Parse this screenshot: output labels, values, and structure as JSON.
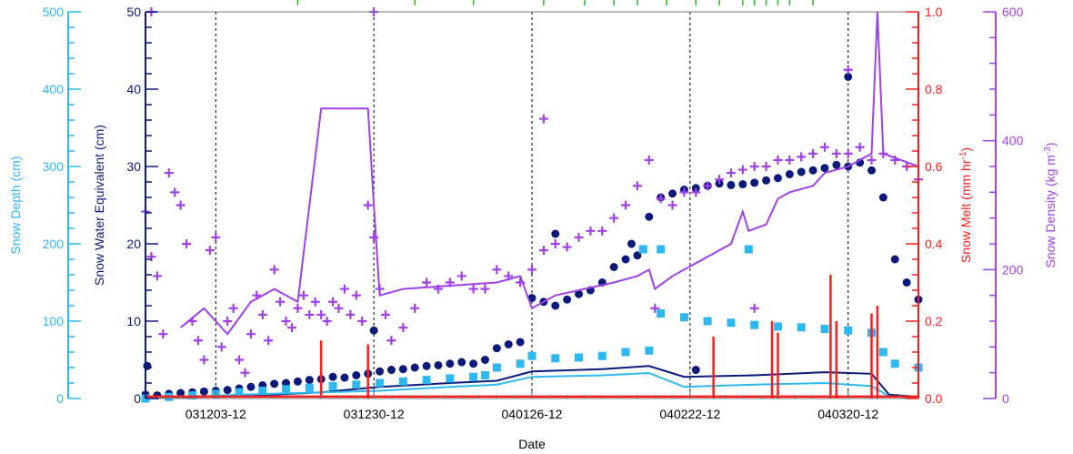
{
  "chart_data": {
    "type": "scatter",
    "xlabel": "Date",
    "x_ticks": [
      "031203-12",
      "031230-12",
      "040126-12",
      "040222-12",
      "040320-12"
    ],
    "x_range_days": [
      0,
      132
    ],
    "x_tick_days": [
      12,
      39,
      66,
      93,
      120
    ],
    "grid_x": true,
    "axes": {
      "depth": {
        "label": "Snow Depth (cm)",
        "range": [
          0,
          500
        ],
        "ticks": [
          "0",
          "100",
          "200",
          "300",
          "400",
          "500"
        ],
        "color": "#2eb8f0"
      },
      "swe": {
        "label": "Snow Water Equivalent (cm)",
        "range": [
          0,
          50
        ],
        "ticks": [
          "0",
          "10",
          "20",
          "30",
          "40",
          "50"
        ],
        "color": "#0a1a7a"
      },
      "melt": {
        "label": "Snow Melt (mm hr",
        "label_sup": "-1",
        "label_end": ")",
        "range": [
          0.0,
          1.0
        ],
        "ticks": [
          "0.0",
          "0.2",
          "0.4",
          "0.6",
          "0.8",
          "1.0"
        ],
        "color": "#ff1a1a"
      },
      "density": {
        "label": "Snow Density (kg m",
        "label_sup": "-3",
        "label_end": ")",
        "range": [
          0,
          600
        ],
        "ticks": [
          "0",
          "200",
          "400",
          "600"
        ],
        "color": "#a040e8"
      }
    },
    "series": [
      {
        "axis": "swe",
        "marker": "dot",
        "color": "#0a1a7a",
        "points": [
          [
            0,
            0.5
          ],
          [
            2,
            0.4
          ],
          [
            4,
            0.6
          ],
          [
            6,
            0.7
          ],
          [
            8,
            0.8
          ],
          [
            10,
            0.9
          ],
          [
            12,
            1.0
          ],
          [
            14,
            1.1
          ],
          [
            16,
            1.3
          ],
          [
            18,
            1.5
          ],
          [
            20,
            1.7
          ],
          [
            22,
            1.9
          ],
          [
            24,
            2.0
          ],
          [
            26,
            2.2
          ],
          [
            28,
            2.4
          ],
          [
            30,
            2.5
          ],
          [
            32,
            2.8
          ],
          [
            34,
            2.7
          ],
          [
            36,
            3.0
          ],
          [
            38,
            3.2
          ],
          [
            40,
            3.5
          ],
          [
            42,
            3.7
          ],
          [
            44,
            3.8
          ],
          [
            46,
            4.0
          ],
          [
            48,
            4.2
          ],
          [
            50,
            4.3
          ],
          [
            52,
            4.5
          ],
          [
            54,
            4.7
          ],
          [
            56,
            4.5
          ],
          [
            58,
            5.0
          ],
          [
            60,
            6.5
          ],
          [
            62,
            7.0
          ],
          [
            64,
            7.3
          ],
          [
            66,
            13.0
          ],
          [
            68,
            12.5
          ],
          [
            70,
            12.0
          ],
          [
            72,
            12.8
          ],
          [
            74,
            13.5
          ],
          [
            76,
            14.0
          ],
          [
            78,
            15.0
          ],
          [
            80,
            17.0
          ],
          [
            82,
            18.0
          ],
          [
            84,
            18.5
          ],
          [
            86,
            23.5
          ],
          [
            88,
            26.0
          ],
          [
            90,
            26.5
          ],
          [
            92,
            27.0
          ],
          [
            94,
            27.2
          ],
          [
            96,
            27.5
          ],
          [
            98,
            27.8
          ],
          [
            100,
            27.6
          ],
          [
            102,
            27.7
          ],
          [
            104,
            27.9
          ],
          [
            106,
            28.2
          ],
          [
            108,
            28.5
          ],
          [
            110,
            29.0
          ],
          [
            112,
            29.3
          ],
          [
            114,
            29.5
          ],
          [
            116,
            29.8
          ],
          [
            118,
            30.2
          ],
          [
            120,
            30.0
          ],
          [
            122,
            30.5
          ],
          [
            124,
            29.5
          ],
          [
            126,
            26.0
          ],
          [
            128,
            18.0
          ],
          [
            130,
            15.0
          ],
          [
            132,
            12.8
          ]
        ]
      },
      {
        "axis": "swe",
        "marker": "dot-outlier",
        "color": "#0a1a7a",
        "points": [
          [
            0.3,
            4.2
          ],
          [
            39,
            8.8
          ],
          [
            70,
            21.3
          ],
          [
            94,
            3.7
          ],
          [
            120,
            41.6
          ],
          [
            83,
            20.0
          ]
        ]
      },
      {
        "axis": "swe",
        "marker": "line",
        "color": "#0a1a7a",
        "points": [
          [
            0,
            0.1
          ],
          [
            16,
            0.3
          ],
          [
            30,
            0.8
          ],
          [
            40,
            1.5
          ],
          [
            52,
            2.0
          ],
          [
            60,
            2.3
          ],
          [
            66,
            3.5
          ],
          [
            78,
            3.8
          ],
          [
            86,
            4.2
          ],
          [
            92,
            2.8
          ],
          [
            104,
            3.0
          ],
          [
            116,
            3.4
          ],
          [
            124,
            3.2
          ],
          [
            127,
            0.5
          ],
          [
            132,
            0.2
          ]
        ]
      },
      {
        "axis": "depth",
        "marker": "square",
        "color": "#2eb8f0",
        "points": [
          [
            0,
            0
          ],
          [
            4,
            2
          ],
          [
            8,
            4
          ],
          [
            12,
            6
          ],
          [
            16,
            8
          ],
          [
            20,
            10
          ],
          [
            24,
            12
          ],
          [
            28,
            14
          ],
          [
            32,
            16
          ],
          [
            36,
            18
          ],
          [
            40,
            20
          ],
          [
            44,
            22
          ],
          [
            48,
            24
          ],
          [
            52,
            26
          ],
          [
            56,
            28
          ],
          [
            58,
            30
          ],
          [
            60,
            40
          ],
          [
            64,
            45
          ],
          [
            66,
            55
          ],
          [
            70,
            52
          ],
          [
            74,
            53
          ],
          [
            78,
            55
          ],
          [
            82,
            60
          ],
          [
            86,
            62
          ],
          [
            88,
            110
          ],
          [
            92,
            105
          ],
          [
            96,
            100
          ],
          [
            100,
            98
          ],
          [
            104,
            95
          ],
          [
            108,
            93
          ],
          [
            112,
            92
          ],
          [
            116,
            90
          ],
          [
            120,
            88
          ],
          [
            124,
            85
          ],
          [
            126,
            60
          ],
          [
            128,
            45
          ],
          [
            132,
            40
          ]
        ]
      },
      {
        "axis": "depth",
        "marker": "square-outlier",
        "color": "#2eb8f0",
        "points": [
          [
            85,
            193
          ],
          [
            88,
            193
          ],
          [
            103,
            193
          ]
        ]
      },
      {
        "axis": "depth",
        "marker": "line",
        "color": "#2eb8f0",
        "points": [
          [
            0,
            0
          ],
          [
            16,
            5
          ],
          [
            30,
            8
          ],
          [
            40,
            10
          ],
          [
            52,
            15
          ],
          [
            60,
            18
          ],
          [
            66,
            28
          ],
          [
            78,
            30
          ],
          [
            86,
            33
          ],
          [
            92,
            15
          ],
          [
            104,
            18
          ],
          [
            116,
            20
          ],
          [
            124,
            16
          ],
          [
            127,
            3
          ],
          [
            132,
            1
          ]
        ]
      },
      {
        "axis": "density",
        "marker": "plus",
        "color": "#a040e8",
        "points": [
          [
            0,
            290
          ],
          [
            1,
            220
          ],
          [
            2,
            190
          ],
          [
            3,
            100
          ],
          [
            4,
            350
          ],
          [
            5,
            320
          ],
          [
            6,
            300
          ],
          [
            7,
            240
          ],
          [
            8,
            120
          ],
          [
            9,
            90
          ],
          [
            10,
            60
          ],
          [
            11,
            230
          ],
          [
            12,
            250
          ],
          [
            13,
            80
          ],
          [
            14,
            120
          ],
          [
            15,
            140
          ],
          [
            16,
            60
          ],
          [
            17,
            40
          ],
          [
            18,
            100
          ],
          [
            19,
            160
          ],
          [
            20,
            130
          ],
          [
            21,
            90
          ],
          [
            22,
            200
          ],
          [
            23,
            150
          ],
          [
            24,
            120
          ],
          [
            25,
            110
          ],
          [
            26,
            140
          ],
          [
            27,
            160
          ],
          [
            28,
            130
          ],
          [
            29,
            150
          ],
          [
            30,
            130
          ],
          [
            31,
            120
          ],
          [
            32,
            150
          ],
          [
            33,
            140
          ],
          [
            34,
            170
          ],
          [
            35,
            130
          ],
          [
            36,
            160
          ],
          [
            37,
            120
          ],
          [
            38,
            300
          ],
          [
            39,
            250
          ],
          [
            40,
            170
          ],
          [
            41,
            130
          ],
          [
            42,
            90
          ],
          [
            44,
            110
          ],
          [
            46,
            140
          ],
          [
            48,
            180
          ],
          [
            50,
            170
          ],
          [
            52,
            180
          ],
          [
            54,
            190
          ],
          [
            56,
            170
          ],
          [
            58,
            170
          ],
          [
            60,
            200
          ],
          [
            62,
            190
          ],
          [
            64,
            180
          ],
          [
            66,
            200
          ],
          [
            68,
            230
          ],
          [
            70,
            240
          ],
          [
            72,
            235
          ],
          [
            74,
            250
          ],
          [
            76,
            260
          ],
          [
            78,
            260
          ],
          [
            80,
            280
          ],
          [
            82,
            300
          ],
          [
            84,
            330
          ],
          [
            86,
            370
          ],
          [
            88,
            310
          ],
          [
            90,
            300
          ],
          [
            92,
            320
          ],
          [
            94,
            320
          ],
          [
            96,
            330
          ],
          [
            98,
            340
          ],
          [
            100,
            350
          ],
          [
            102,
            355
          ],
          [
            104,
            360
          ],
          [
            106,
            360
          ],
          [
            108,
            370
          ],
          [
            110,
            370
          ],
          [
            112,
            375
          ],
          [
            114,
            380
          ],
          [
            116,
            390
          ],
          [
            118,
            380
          ],
          [
            120,
            380
          ],
          [
            122,
            390
          ],
          [
            124,
            370
          ],
          [
            126,
            380
          ],
          [
            128,
            370
          ],
          [
            130,
            360
          ],
          [
            132,
            340
          ]
        ]
      },
      {
        "axis": "density",
        "marker": "plus-outlier",
        "color": "#a040e8",
        "points": [
          [
            1,
            600
          ],
          [
            39,
            600
          ],
          [
            68,
            434
          ],
          [
            87,
            140
          ],
          [
            104,
            140
          ],
          [
            120,
            510
          ]
        ]
      },
      {
        "axis": "density",
        "marker": "line",
        "color": "#a040e8",
        "points": [
          [
            6,
            110
          ],
          [
            10,
            140
          ],
          [
            14,
            100
          ],
          [
            18,
            150
          ],
          [
            22,
            170
          ],
          [
            26,
            150
          ],
          [
            30,
            450
          ],
          [
            38,
            450
          ],
          [
            39,
            300
          ],
          [
            40,
            160
          ],
          [
            44,
            170
          ],
          [
            52,
            175
          ],
          [
            60,
            180
          ],
          [
            64,
            190
          ],
          [
            66,
            140
          ],
          [
            70,
            160
          ],
          [
            80,
            180
          ],
          [
            84,
            190
          ],
          [
            86,
            200
          ],
          [
            87,
            170
          ],
          [
            90,
            190
          ],
          [
            98,
            230
          ],
          [
            100,
            240
          ],
          [
            102,
            290
          ],
          [
            103,
            260
          ],
          [
            106,
            270
          ],
          [
            108,
            310
          ],
          [
            110,
            320
          ],
          [
            114,
            330
          ],
          [
            116,
            350
          ],
          [
            120,
            360
          ],
          [
            124,
            380
          ],
          [
            125,
            600
          ],
          [
            126,
            380
          ],
          [
            132,
            360
          ]
        ]
      },
      {
        "axis": "melt",
        "marker": "spike",
        "color": "#ff1a1a",
        "points": [
          [
            30,
            0.15
          ],
          [
            38,
            0.14
          ],
          [
            97,
            0.16
          ],
          [
            107,
            0.2
          ],
          [
            108,
            0.17
          ],
          [
            117,
            0.32
          ],
          [
            118,
            0.2
          ],
          [
            124,
            0.22
          ],
          [
            125,
            0.24
          ]
        ]
      },
      {
        "axis": "melt",
        "marker": "baseline",
        "color": "#ff1a1a",
        "points": [
          [
            0,
            0.005
          ],
          [
            132,
            0.005
          ]
        ]
      }
    ],
    "top_ticks": {
      "color": "#22bb22",
      "x_days": [
        26,
        46,
        56,
        68,
        75,
        80,
        84,
        89,
        94,
        98,
        102,
        104,
        106,
        108,
        110,
        114
      ]
    }
  }
}
